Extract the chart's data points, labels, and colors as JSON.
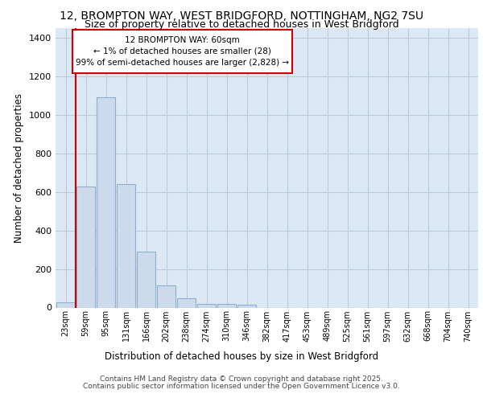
{
  "title_line1": "12, BROMPTON WAY, WEST BRIDGFORD, NOTTINGHAM, NG2 7SU",
  "title_line2": "Size of property relative to detached houses in West Bridgford",
  "xlabel": "Distribution of detached houses by size in West Bridgford",
  "ylabel": "Number of detached properties",
  "categories": [
    "23sqm",
    "59sqm",
    "95sqm",
    "131sqm",
    "166sqm",
    "202sqm",
    "238sqm",
    "274sqm",
    "310sqm",
    "346sqm",
    "382sqm",
    "417sqm",
    "453sqm",
    "489sqm",
    "525sqm",
    "561sqm",
    "597sqm",
    "632sqm",
    "668sqm",
    "704sqm",
    "740sqm"
  ],
  "values": [
    28,
    630,
    1090,
    640,
    290,
    115,
    50,
    20,
    20,
    15,
    0,
    0,
    0,
    0,
    0,
    0,
    0,
    0,
    0,
    0,
    0
  ],
  "bar_color": "#ccdaeb",
  "bar_edge_color": "#90aece",
  "grid_color": "#b8cce0",
  "bg_color": "#dce8f4",
  "vline_color": "#cc0000",
  "annotation_text": "12 BROMPTON WAY: 60sqm\n← 1% of detached houses are smaller (28)\n99% of semi-detached houses are larger (2,828) →",
  "ylim": [
    0,
    1450
  ],
  "yticks": [
    0,
    200,
    400,
    600,
    800,
    1000,
    1200,
    1400
  ],
  "footer_line1": "Contains HM Land Registry data © Crown copyright and database right 2025.",
  "footer_line2": "Contains public sector information licensed under the Open Government Licence v3.0."
}
